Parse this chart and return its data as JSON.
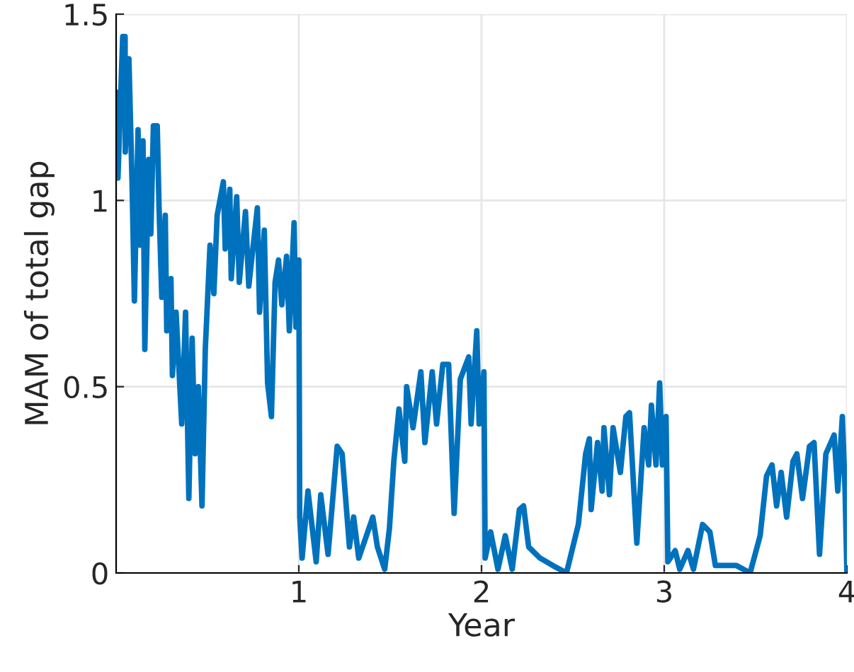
{
  "chart_data": {
    "type": "line",
    "xlabel": "Year",
    "ylabel": "MAM of total gap",
    "xlim": [
      0,
      4
    ],
    "xticks": [
      1,
      2,
      3,
      4
    ],
    "ylim": [
      0,
      1.5
    ],
    "yticks": [
      0,
      0.5,
      1,
      1.5
    ],
    "grid": true,
    "legend": false,
    "marker": "none",
    "line_style": "solid",
    "series": [
      {
        "color": "#0072bd",
        "x": [
          0,
          0.01,
          0.036,
          0.049,
          0.05,
          0.07,
          0.088,
          0.1,
          0.12,
          0.13,
          0.147,
          0.157,
          0.178,
          0.19,
          0.204,
          0.225,
          0.235,
          0.25,
          0.269,
          0.277,
          0.3,
          0.308,
          0.328,
          0.359,
          0.38,
          0.398,
          0.416,
          0.432,
          0.45,
          0.47,
          0.488,
          0.514,
          0.535,
          0.553,
          0.587,
          0.597,
          0.622,
          0.63,
          0.66,
          0.674,
          0.708,
          0.726,
          0.773,
          0.785,
          0.811,
          0.829,
          0.85,
          0.87,
          0.889,
          0.907,
          0.933,
          0.948,
          0.974,
          0.984,
          1.0,
          1.005,
          1.018,
          1.05,
          1.095,
          1.12,
          1.16,
          1.21,
          1.237,
          1.277,
          1.3,
          1.328,
          1.405,
          1.43,
          1.47,
          1.496,
          1.52,
          1.548,
          1.58,
          1.59,
          1.625,
          1.668,
          1.69,
          1.73,
          1.754,
          1.788,
          1.82,
          1.85,
          1.884,
          1.93,
          1.943,
          1.974,
          1.987,
          2.013,
          2.02,
          2.05,
          2.09,
          2.13,
          2.168,
          2.207,
          2.23,
          2.258,
          2.32,
          2.39,
          2.465,
          2.53,
          2.57,
          2.59,
          2.6,
          2.635,
          2.66,
          2.67,
          2.7,
          2.72,
          2.76,
          2.79,
          2.81,
          2.85,
          2.89,
          2.915,
          2.93,
          2.955,
          2.975,
          2.99,
          3.01,
          3.02,
          3.06,
          3.085,
          3.13,
          3.16,
          3.21,
          3.25,
          3.28,
          3.395,
          3.47,
          3.525,
          3.56,
          3.59,
          3.615,
          3.64,
          3.67,
          3.705,
          3.726,
          3.757,
          3.795,
          3.82,
          3.85,
          3.885,
          3.93,
          3.95,
          3.975,
          3.99,
          4.0
        ],
        "values": [
          1.29,
          1.06,
          1.44,
          1.44,
          1.13,
          1.38,
          1.03,
          0.73,
          1.19,
          0.88,
          1.16,
          0.6,
          1.11,
          0.91,
          1.2,
          1.2,
          0.98,
          0.74,
          0.96,
          0.65,
          0.79,
          0.53,
          0.7,
          0.4,
          0.7,
          0.2,
          0.63,
          0.32,
          0.5,
          0.18,
          0.6,
          0.88,
          0.75,
          0.96,
          1.05,
          0.87,
          1.03,
          0.79,
          1.01,
          0.78,
          0.97,
          0.77,
          0.98,
          0.7,
          0.92,
          0.51,
          0.42,
          0.78,
          0.84,
          0.72,
          0.85,
          0.65,
          0.94,
          0.66,
          0.84,
          0.15,
          0.04,
          0.22,
          0.03,
          0.21,
          0.05,
          0.34,
          0.32,
          0.07,
          0.15,
          0.04,
          0.15,
          0.07,
          0.01,
          0.12,
          0.3,
          0.44,
          0.3,
          0.5,
          0.39,
          0.54,
          0.35,
          0.54,
          0.4,
          0.56,
          0.56,
          0.16,
          0.52,
          0.58,
          0.4,
          0.65,
          0.4,
          0.54,
          0.04,
          0.11,
          0.01,
          0.1,
          0.01,
          0.17,
          0.18,
          0.07,
          0.04,
          0.02,
          0,
          0.13,
          0.32,
          0.36,
          0.17,
          0.35,
          0.22,
          0.39,
          0.21,
          0.39,
          0.27,
          0.42,
          0.43,
          0.08,
          0.39,
          0.29,
          0.45,
          0.29,
          0.51,
          0.29,
          0.42,
          0.03,
          0.06,
          0.01,
          0.06,
          0.01,
          0.13,
          0.11,
          0.02,
          0.02,
          0,
          0.1,
          0.26,
          0.29,
          0.18,
          0.27,
          0.15,
          0.3,
          0.32,
          0.2,
          0.34,
          0.35,
          0.05,
          0.32,
          0.37,
          0.22,
          0.42,
          0.22,
          0
        ]
      }
    ]
  }
}
